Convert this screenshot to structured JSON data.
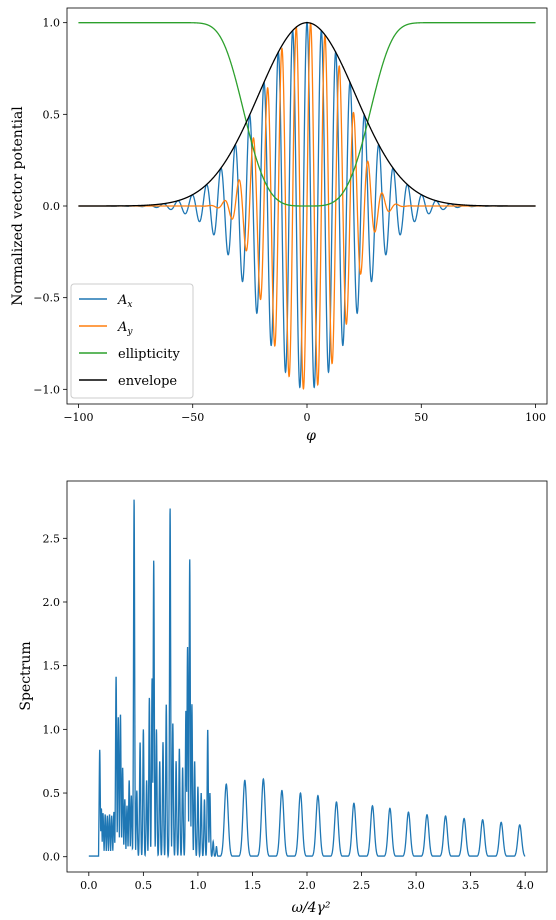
{
  "chart_data": [
    {
      "type": "line",
      "xlabel": "φ",
      "ylabel": "Normalized vector potential",
      "xlim": [
        -105,
        105
      ],
      "ylim": [
        -1.08,
        1.08
      ],
      "xticks": [
        -100,
        -50,
        0,
        50,
        100
      ],
      "xtick_labels": [
        "−100",
        "−50",
        "0",
        "50",
        "100"
      ],
      "yticks": [
        -1.0,
        -0.5,
        0.0,
        0.5,
        1.0
      ],
      "ytick_labels": [
        "−1.0",
        "−0.5",
        "0.0",
        "0.5",
        "1.0"
      ],
      "legend_position": "lower-left",
      "grid": false,
      "series": [
        {
          "name": "A",
          "subscript": "x",
          "color": "#1f77b4",
          "formula": "A_x(φ) = E(φ)·cos(φ)",
          "x_range": [
            -100,
            100
          ]
        },
        {
          "name": "A",
          "subscript": "y",
          "color": "#ff7f0e",
          "formula": "A_y(φ) = E(φ)·(1−ε(φ))·sin(φ)",
          "x_range": [
            -100,
            100
          ]
        },
        {
          "name": "ellipticity",
          "color": "#2ca02c",
          "formula": "ε(φ) = 1 − exp(−(φ/30)^4)",
          "x_range": [
            -100,
            100
          ]
        },
        {
          "name": "envelope",
          "color": "#000000",
          "formula": "E(φ) = exp(−(φ/30)^2)",
          "x_range": [
            -100,
            100
          ]
        }
      ]
    },
    {
      "type": "line",
      "xlabel": "ω/4γ²",
      "ylabel": "Spectrum",
      "xlim": [
        -0.2,
        4.2
      ],
      "ylim": [
        -0.12,
        2.95
      ],
      "xticks": [
        0.0,
        0.5,
        1.0,
        1.5,
        2.0,
        2.5,
        3.0,
        3.5,
        4.0
      ],
      "xtick_labels": [
        "0.0",
        "0.5",
        "1.0",
        "1.5",
        "2.0",
        "2.5",
        "3.0",
        "3.5",
        "4.0"
      ],
      "yticks": [
        0.0,
        0.5,
        1.0,
        1.5,
        2.0,
        2.5
      ],
      "ytick_labels": [
        "0.0",
        "0.5",
        "1.0",
        "1.5",
        "2.0",
        "2.5"
      ],
      "grid": false,
      "series": [
        {
          "name": "",
          "color": "#1f77b4",
          "x_range": [
            0.0,
            4.0
          ],
          "baseline": 0.005,
          "peaks": [
            {
              "x": 0.1,
              "y": 0.84
            },
            {
              "x": 0.115,
              "y": 0.38
            },
            {
              "x": 0.13,
              "y": 0.34
            },
            {
              "x": 0.15,
              "y": 0.33
            },
            {
              "x": 0.17,
              "y": 0.32
            },
            {
              "x": 0.19,
              "y": 0.33
            },
            {
              "x": 0.21,
              "y": 0.32
            },
            {
              "x": 0.23,
              "y": 0.35
            },
            {
              "x": 0.25,
              "y": 1.42
            },
            {
              "x": 0.27,
              "y": 1.1
            },
            {
              "x": 0.29,
              "y": 1.12
            },
            {
              "x": 0.31,
              "y": 0.7
            },
            {
              "x": 0.33,
              "y": 0.45
            },
            {
              "x": 0.35,
              "y": 0.4
            },
            {
              "x": 0.37,
              "y": 0.6
            },
            {
              "x": 0.39,
              "y": 0.48
            },
            {
              "x": 0.415,
              "y": 2.81
            },
            {
              "x": 0.44,
              "y": 0.52
            },
            {
              "x": 0.47,
              "y": 0.9
            },
            {
              "x": 0.5,
              "y": 1.0
            },
            {
              "x": 0.53,
              "y": 0.6
            },
            {
              "x": 0.555,
              "y": 1.25
            },
            {
              "x": 0.58,
              "y": 1.4
            },
            {
              "x": 0.595,
              "y": 2.33
            },
            {
              "x": 0.62,
              "y": 1.0
            },
            {
              "x": 0.65,
              "y": 0.75
            },
            {
              "x": 0.68,
              "y": 0.9
            },
            {
              "x": 0.71,
              "y": 1.2
            },
            {
              "x": 0.745,
              "y": 2.74
            },
            {
              "x": 0.77,
              "y": 1.05
            },
            {
              "x": 0.8,
              "y": 0.75
            },
            {
              "x": 0.83,
              "y": 0.85
            },
            {
              "x": 0.86,
              "y": 0.7
            },
            {
              "x": 0.89,
              "y": 1.15
            },
            {
              "x": 0.905,
              "y": 1.65
            },
            {
              "x": 0.925,
              "y": 2.34
            },
            {
              "x": 0.945,
              "y": 1.2
            },
            {
              "x": 0.97,
              "y": 0.75
            },
            {
              "x": 1.0,
              "y": 0.55
            },
            {
              "x": 1.03,
              "y": 0.5
            },
            {
              "x": 1.06,
              "y": 0.45
            },
            {
              "x": 1.09,
              "y": 1.0
            },
            {
              "x": 1.11,
              "y": 0.5
            },
            {
              "x": 1.14,
              "y": 0.12
            },
            {
              "x": 1.17,
              "y": 0.08
            },
            {
              "x": 1.26,
              "y": 0.57
            },
            {
              "x": 1.43,
              "y": 0.6
            },
            {
              "x": 1.6,
              "y": 0.61
            },
            {
              "x": 1.77,
              "y": 0.52
            },
            {
              "x": 1.94,
              "y": 0.5
            },
            {
              "x": 2.1,
              "y": 0.48
            },
            {
              "x": 2.27,
              "y": 0.43
            },
            {
              "x": 2.43,
              "y": 0.42
            },
            {
              "x": 2.6,
              "y": 0.4
            },
            {
              "x": 2.76,
              "y": 0.38
            },
            {
              "x": 2.93,
              "y": 0.35
            },
            {
              "x": 3.1,
              "y": 0.33
            },
            {
              "x": 3.27,
              "y": 0.32
            },
            {
              "x": 3.44,
              "y": 0.3
            },
            {
              "x": 3.61,
              "y": 0.29
            },
            {
              "x": 3.78,
              "y": 0.27
            },
            {
              "x": 3.95,
              "y": 0.25
            }
          ]
        }
      ]
    }
  ]
}
